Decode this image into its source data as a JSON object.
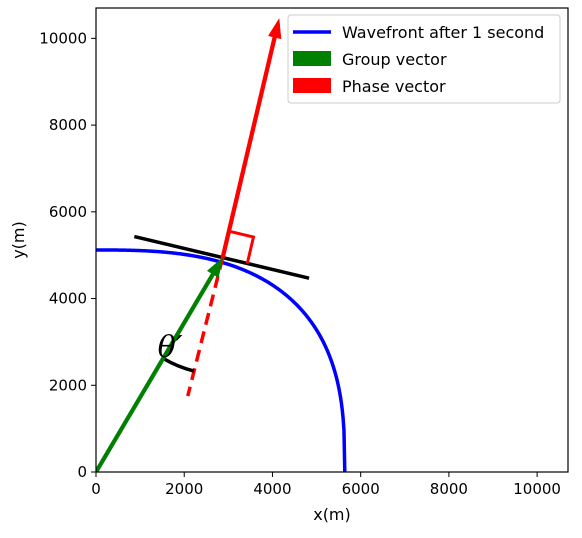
{
  "chart_data": {
    "type": "line",
    "title": "",
    "xlabel": "x(m)",
    "ylabel": "y(m)",
    "xlim": [
      0,
      10700
    ],
    "ylim": [
      0,
      10700
    ],
    "x_ticks": [
      0,
      2000,
      4000,
      6000,
      8000,
      10000
    ],
    "y_ticks": [
      0,
      2000,
      4000,
      6000,
      8000,
      10000
    ],
    "x_tick_labels": [
      "0",
      "2000",
      "4000",
      "6000",
      "8000",
      "10000"
    ],
    "y_tick_labels": [
      "0",
      "2000",
      "4000",
      "6000",
      "8000",
      "10000"
    ],
    "grid": false,
    "legend_position": "top-right",
    "legend": [
      {
        "label": "Wavefront after 1 second",
        "color": "#0000ff",
        "kind": "line"
      },
      {
        "label": "Group vector",
        "color": "#008000",
        "kind": "patch"
      },
      {
        "label": "Phase vector",
        "color": "#ff0000",
        "kind": "patch"
      }
    ],
    "series": [
      {
        "name": "Wavefront after 1 second",
        "color": "#0000ff",
        "a": 5640,
        "b": 5120,
        "exponent": 2.8,
        "x_range": [
          0,
          5640
        ]
      }
    ],
    "vectors": {
      "group": {
        "from": [
          0,
          0
        ],
        "to": [
          2870,
          4940
        ],
        "color": "#008000"
      },
      "phase": {
        "from": [
          2870,
          4940
        ],
        "to": [
          4150,
          10450
        ],
        "color": "#ff0000"
      },
      "phase_extension": {
        "from": [
          2870,
          4940
        ],
        "to": [
          2080,
          1750
        ],
        "color": "#ff0000"
      }
    },
    "tangent_line": {
      "from": [
        870,
        5430
      ],
      "to": [
        4830,
        4470
      ],
      "color": "#000000"
    },
    "right_angle_marker": {
      "points": [
        [
          3430,
          4810
        ],
        [
          3570,
          5420
        ],
        [
          2990,
          5560
        ]
      ],
      "color": "#ff0000"
    },
    "angle_arc": {
      "center": [
        2870,
        4940
      ],
      "radius": 2650,
      "color": "#000000"
    },
    "annotations": [
      {
        "text": "θ′",
        "x": 1680,
        "y": 2650
      }
    ]
  }
}
